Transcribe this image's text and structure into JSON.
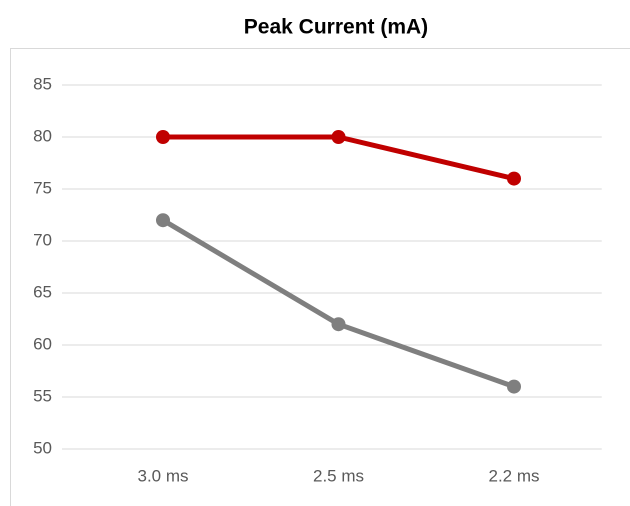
{
  "chart_data": {
    "type": "line",
    "title": "Peak Current (mA)",
    "categories": [
      "3.0 ms",
      "2.5 ms",
      "2.2 ms"
    ],
    "series": [
      {
        "color": "#c00000",
        "values": [
          80,
          80,
          76
        ]
      },
      {
        "color": "#7f7f7f",
        "values": [
          72,
          62,
          56
        ]
      }
    ],
    "ylim": [
      50,
      85
    ],
    "yticks": [
      50,
      55,
      60,
      65,
      70,
      75,
      80,
      85
    ],
    "grid": true
  }
}
